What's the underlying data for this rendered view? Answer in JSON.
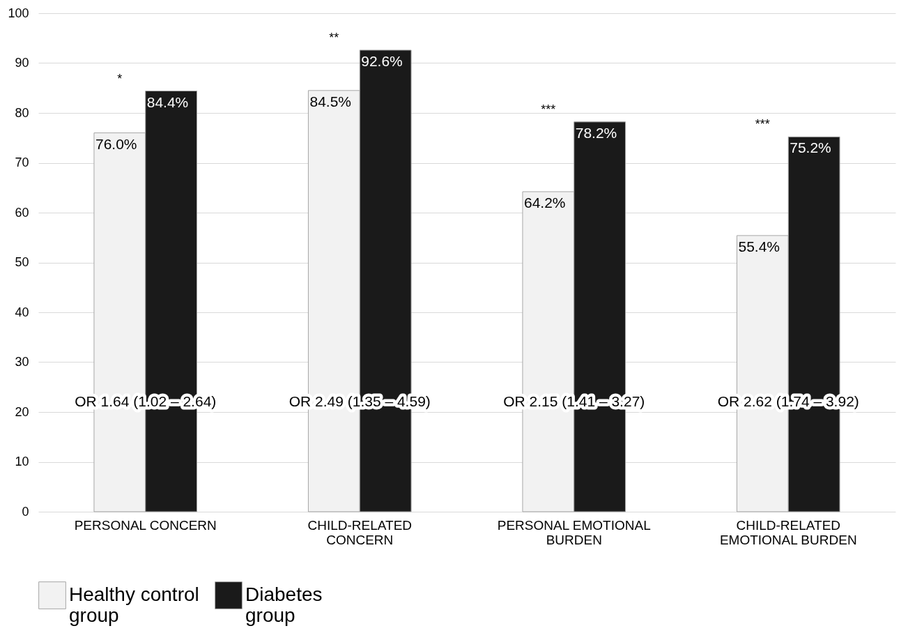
{
  "chart_data": {
    "type": "bar",
    "categories": [
      "PERSONAL CONCERN",
      "CHILD-RELATED CONCERN",
      "PERSONAL EMOTIONAL BURDEN",
      "CHILD-RELATED EMOTIONAL BURDEN"
    ],
    "series": [
      {
        "name": "Healthy control group",
        "color": "#f2f2f2",
        "values": [
          76.0,
          84.5,
          64.2,
          55.4
        ],
        "value_labels": [
          "76.0%",
          "84.5%",
          "64.2%",
          "55.4%"
        ]
      },
      {
        "name": "Diabetes group",
        "color": "#1a1a1a",
        "values": [
          84.4,
          92.6,
          78.2,
          75.2
        ],
        "value_labels": [
          "84.4%",
          "92.6%",
          "78.2%",
          "75.2%"
        ]
      }
    ],
    "ylim": [
      0,
      100
    ],
    "yticks": [
      0,
      10,
      20,
      30,
      40,
      50,
      60,
      70,
      80,
      90,
      100
    ],
    "grid": "y",
    "legend": "bottom",
    "annotations": [
      {
        "text": "*",
        "x": "PERSONAL CONCERN",
        "y": 84.4
      },
      {
        "text": "**",
        "x": "CHILD-RELATED CONCERN",
        "y": 92.6
      },
      {
        "text": "***",
        "x": "PERSONAL EMOTIONAL BURDEN",
        "y": 78.2
      },
      {
        "text": "***",
        "x": "CHILD-RELATED EMOTIONAL BURDEN",
        "y": 75.2
      },
      {
        "text": "OR 1.64 (1.02 – 2.64)",
        "x": "PERSONAL CONCERN",
        "y": 22
      },
      {
        "text": "OR 2.49 (1.35 – 4.59)",
        "x": "CHILD-RELATED CONCERN",
        "y": 22
      },
      {
        "text": "OR 2.15 (1.41 – 3.27)",
        "x": "PERSONAL EMOTIONAL BURDEN",
        "y": 22
      },
      {
        "text": "OR 2.62 (1.74 – 3.92)",
        "x": "CHILD-RELATED EMOTIONAL BURDEN",
        "y": 22
      }
    ]
  }
}
